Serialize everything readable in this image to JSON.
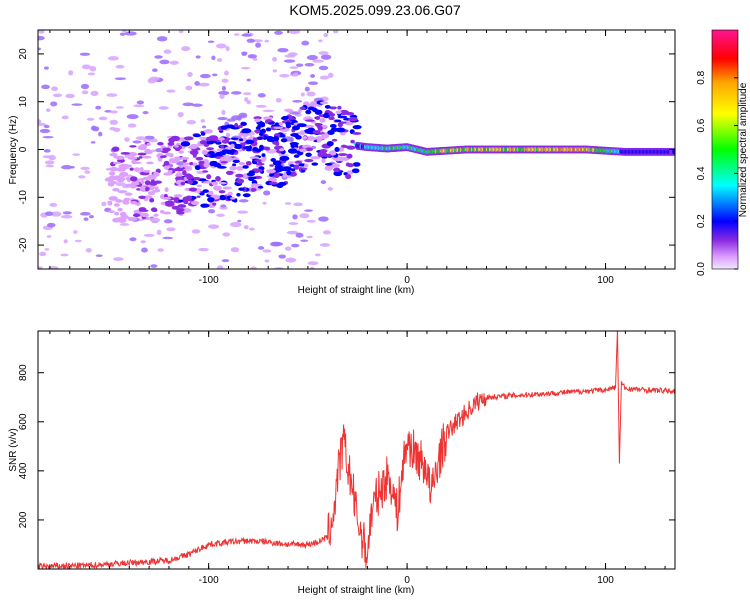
{
  "title": "KOM5.2025.099.23.06.G07",
  "chart_data": [
    {
      "type": "heatmap",
      "xlabel": "Height of straight line (km)",
      "ylabel": "Frequency (Hz)",
      "xlim": [
        -186,
        135
      ],
      "ylim": [
        -25,
        25
      ],
      "xticks": [
        -100,
        0,
        100
      ],
      "yticks": [
        -20,
        -10,
        0,
        10,
        20
      ],
      "colorbar": {
        "label": "Normalized spectral amplitude",
        "range": [
          0,
          1
        ],
        "ticks": [
          0.0,
          0.2,
          0.4,
          0.6,
          0.8
        ],
        "colormap": [
          "#ff1493",
          "#ff0000",
          "#ffa500",
          "#ffff00",
          "#00ff00",
          "#00ffff",
          "#0000ff",
          "#8a2be2",
          "#dda0ff"
        ]
      },
      "ridge": [
        {
          "x": -150,
          "f": -8,
          "amp": 0.1
        },
        {
          "x": -120,
          "f": -6,
          "amp": 0.15
        },
        {
          "x": -100,
          "f": -4,
          "amp": 0.2
        },
        {
          "x": -80,
          "f": -2,
          "amp": 0.22
        },
        {
          "x": -60,
          "f": 1,
          "amp": 0.22
        },
        {
          "x": -45,
          "f": 4,
          "amp": 0.2
        },
        {
          "x": -30,
          "f": 1,
          "amp": 0.2
        },
        {
          "x": -20,
          "f": 0.5,
          "amp": 0.4
        },
        {
          "x": -10,
          "f": 0.2,
          "amp": 0.5
        },
        {
          "x": 0,
          "f": 0.5,
          "amp": 0.45
        },
        {
          "x": 10,
          "f": -0.5,
          "amp": 0.55
        },
        {
          "x": 30,
          "f": 0,
          "amp": 0.7
        },
        {
          "x": 60,
          "f": 0,
          "amp": 0.65
        },
        {
          "x": 90,
          "f": 0,
          "amp": 0.75
        },
        {
          "x": 110,
          "f": -0.5,
          "amp": 0.3
        },
        {
          "x": 135,
          "f": -0.5,
          "amp": 0.2
        }
      ]
    },
    {
      "type": "line",
      "xlabel": "Height of straight line (km)",
      "ylabel": "SNR (v/v)",
      "xlim": [
        -186,
        135
      ],
      "ylim": [
        0,
        970
      ],
      "xticks": [
        -100,
        0,
        100
      ],
      "yticks": [
        200,
        400,
        600,
        800
      ],
      "color": "#ee3333",
      "series": [
        {
          "x": [
            -186,
            -160,
            -140,
            -120,
            -110,
            -100,
            -90,
            -80,
            -70,
            -60,
            -50,
            -45,
            -40,
            -37,
            -35,
            -32,
            -30,
            -28,
            -25,
            -22,
            -20,
            -18,
            -15,
            -12,
            -10,
            -8,
            -5,
            -2,
            0,
            5,
            10,
            12,
            15,
            20,
            25,
            30,
            35,
            40,
            50,
            60,
            70,
            80,
            90,
            100,
            105,
            106,
            107,
            108,
            110,
            120,
            135
          ],
          "y": [
            10,
            15,
            25,
            35,
            60,
            100,
            110,
            115,
            110,
            100,
            100,
            110,
            130,
            230,
            380,
            520,
            420,
            350,
            200,
            110,
            60,
            230,
            300,
            340,
            380,
            350,
            230,
            420,
            520,
            460,
            410,
            290,
            420,
            550,
            600,
            640,
            680,
            700,
            705,
            710,
            715,
            720,
            725,
            730,
            740,
            980,
            430,
            760,
            735,
            730,
            725
          ]
        }
      ]
    }
  ]
}
